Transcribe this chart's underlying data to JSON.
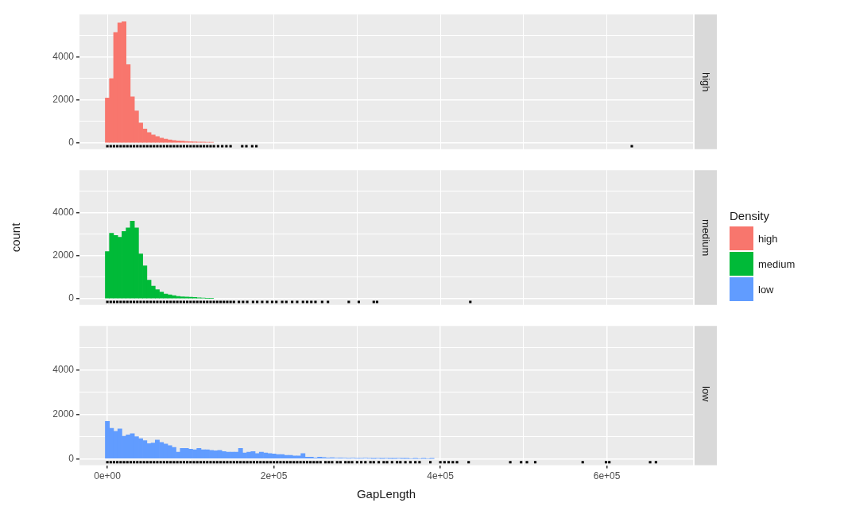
{
  "chart_data": [
    {
      "type": "histogram",
      "annotations": [
        "high"
      ],
      "bins": [
        -2500,
        2500,
        7500,
        12500,
        17500,
        22500,
        27500,
        32500,
        37500,
        42500,
        47500,
        52500,
        57500,
        62500,
        67500,
        72500,
        77500,
        82500,
        87500,
        92500,
        97500,
        102500,
        107500,
        112500,
        117500,
        122500,
        127500
      ],
      "series": [
        {
          "name": "high",
          "color": "#f8766d",
          "values": [
            2100,
            3000,
            5150,
            5600,
            5650,
            3650,
            2150,
            1500,
            930,
            650,
            490,
            380,
            300,
            230,
            180,
            140,
            120,
            100,
            90,
            70,
            60,
            50,
            40,
            40,
            30,
            30
          ]
        },
        {
          "type": "scatter",
          "color": "#000000",
          "x": [
            0,
            4000,
            8000,
            12000,
            16000,
            20000,
            24000,
            28000,
            32000,
            36000,
            40000,
            44000,
            48000,
            52000,
            56000,
            60000,
            64000,
            68000,
            72000,
            76000,
            80000,
            84000,
            88000,
            92000,
            96000,
            100000,
            104000,
            108000,
            112000,
            116000,
            120000,
            124000,
            128000,
            133000,
            138000,
            143000,
            148000,
            162000,
            167000,
            174000,
            179000,
            630000
          ],
          "values": [
            -150,
            -150,
            -150,
            -150,
            -150,
            -150,
            -150,
            -150,
            -150,
            -150,
            -150,
            -150,
            -150,
            -150,
            -150,
            -150,
            -150,
            -150,
            -150,
            -150,
            -150,
            -150,
            -150,
            -150,
            -150,
            -150,
            -150,
            -150,
            -150,
            -150,
            -150,
            -150,
            -150,
            -150,
            -150,
            -150,
            -150,
            -150,
            -150,
            -150,
            -150,
            -150
          ]
        }
      ],
      "xlim": [
        -33500,
        703500
      ],
      "ylim": [
        -290,
        5990
      ],
      "xticks": [
        {
          "value": 0,
          "label": null
        },
        {
          "value": 100000,
          "label": null
        },
        {
          "value": 200000,
          "label": null
        },
        {
          "value": 300000,
          "label": null
        },
        {
          "value": 400000,
          "label": null
        },
        {
          "value": 500000,
          "label": null
        },
        {
          "value": 600000,
          "label": null
        }
      ],
      "yticks": [
        0,
        {
          "value": 1000,
          "label": null
        },
        2000,
        {
          "value": 3000,
          "label": null
        },
        4000,
        {
          "value": 5000,
          "label": null
        }
      ],
      "grid": true,
      "tick_labels": "y",
      "marker": "square"
    },
    {
      "type": "histogram",
      "annotations": [
        "medium"
      ],
      "ylabel": "count",
      "legend": "right",
      "legend_title": "Density",
      "bins": [
        -2500,
        2500,
        7500,
        12500,
        17500,
        22500,
        27500,
        32500,
        37500,
        42500,
        47500,
        52500,
        57500,
        62500,
        67500,
        72500,
        77500,
        82500,
        87500,
        92500,
        97500,
        102500,
        107500,
        112500,
        117500,
        122500,
        127500
      ],
      "series": [
        {
          "name": "medium",
          "color": "#00ba38",
          "values": [
            2200,
            3050,
            2950,
            2870,
            3130,
            3300,
            3620,
            3300,
            2090,
            1530,
            870,
            590,
            420,
            310,
            220,
            180,
            140,
            110,
            90,
            80,
            70,
            60,
            40,
            30,
            20,
            20
          ]
        },
        {
          "type": "scatter",
          "color": "#000000",
          "x": [
            0,
            4000,
            8000,
            12000,
            16000,
            20000,
            24000,
            28000,
            32000,
            36000,
            40000,
            44000,
            48000,
            52000,
            56000,
            60000,
            64000,
            68000,
            72000,
            76000,
            80000,
            84000,
            88000,
            92000,
            96000,
            100000,
            104000,
            108000,
            112000,
            116000,
            120000,
            124000,
            128000,
            132000,
            136000,
            140000,
            144000,
            148000,
            152000,
            158000,
            163000,
            168000,
            175000,
            180000,
            186000,
            192000,
            198000,
            203000,
            210000,
            215000,
            222000,
            228000,
            235000,
            240000,
            245000,
            250000,
            258000,
            265000,
            290000,
            302000,
            320000,
            324000,
            436000
          ],
          "values": [
            -150,
            -150,
            -150,
            -150,
            -150,
            -150,
            -150,
            -150,
            -150,
            -150,
            -150,
            -150,
            -150,
            -150,
            -150,
            -150,
            -150,
            -150,
            -150,
            -150,
            -150,
            -150,
            -150,
            -150,
            -150,
            -150,
            -150,
            -150,
            -150,
            -150,
            -150,
            -150,
            -150,
            -150,
            -150,
            -150,
            -150,
            -150,
            -150,
            -150,
            -150,
            -150,
            -150,
            -150,
            -150,
            -150,
            -150,
            -150,
            -150,
            -150,
            -150,
            -150,
            -150,
            -150,
            -150,
            -150,
            -150,
            -150,
            -150,
            -150,
            -150,
            -150,
            -150
          ]
        }
      ],
      "xlim": [
        -33500,
        703500
      ],
      "ylim": [
        -290,
        5990
      ],
      "xticks": [
        {
          "value": 0,
          "label": null
        },
        {
          "value": 100000,
          "label": null
        },
        {
          "value": 200000,
          "label": null
        },
        {
          "value": 300000,
          "label": null
        },
        {
          "value": 400000,
          "label": null
        },
        {
          "value": 500000,
          "label": null
        },
        {
          "value": 600000,
          "label": null
        }
      ],
      "yticks": [
        0,
        {
          "value": 1000,
          "label": null
        },
        2000,
        {
          "value": 3000,
          "label": null
        },
        4000,
        {
          "value": 5000,
          "label": null
        }
      ],
      "grid": true,
      "tick_labels": "y",
      "marker": "square"
    },
    {
      "type": "histogram",
      "annotations": [
        "low"
      ],
      "xlabel": "GapLength",
      "bins": [
        -2500,
        2500,
        7500,
        12500,
        17500,
        22500,
        27500,
        32500,
        37500,
        42500,
        47500,
        52500,
        57500,
        62500,
        67500,
        72500,
        77500,
        82500,
        87500,
        92500,
        97500,
        102500,
        107500,
        112500,
        117500,
        122500,
        127500,
        132500,
        137500,
        142500,
        147500,
        152500,
        157500,
        162500,
        167500,
        172500,
        177500,
        182500,
        187500,
        192500,
        197500,
        202500,
        207500,
        212500,
        217500,
        222500,
        227500,
        232500,
        237500,
        242500,
        247500,
        252500,
        257500,
        262500,
        267500,
        272500,
        277500,
        282500,
        287500,
        292500,
        297500,
        302500,
        307500,
        312500,
        317500,
        322500,
        327500,
        332500,
        337500,
        342500,
        347500,
        352500,
        357500,
        362500,
        367500,
        372500,
        377500,
        382500,
        387500,
        392500
      ],
      "series": [
        {
          "name": "low",
          "color": "#619cff",
          "values": [
            1690,
            1380,
            1240,
            1350,
            1020,
            1080,
            1130,
            1000,
            910,
            820,
            690,
            710,
            850,
            740,
            670,
            600,
            520,
            300,
            470,
            470,
            440,
            410,
            470,
            410,
            410,
            380,
            360,
            380,
            330,
            300,
            300,
            300,
            470,
            270,
            300,
            330,
            240,
            300,
            270,
            240,
            220,
            190,
            190,
            160,
            160,
            130,
            130,
            240,
            80,
            80,
            40,
            80,
            60,
            40,
            50,
            30,
            40,
            30,
            20,
            30,
            20,
            20,
            30,
            20,
            10,
            20,
            10,
            20,
            10,
            10,
            20,
            10,
            10,
            0,
            10,
            0,
            10,
            0,
            10
          ]
        },
        {
          "type": "scatter",
          "color": "#000000",
          "x": [
            0,
            4000,
            8000,
            12000,
            16000,
            20000,
            24000,
            28000,
            32000,
            36000,
            40000,
            44000,
            48000,
            52000,
            56000,
            60000,
            64000,
            68000,
            72000,
            76000,
            80000,
            84000,
            88000,
            92000,
            96000,
            100000,
            104000,
            108000,
            112000,
            116000,
            120000,
            124000,
            128000,
            132000,
            136000,
            140000,
            144000,
            148000,
            152000,
            156000,
            160000,
            164000,
            168000,
            172000,
            176000,
            180000,
            184000,
            188000,
            192000,
            196000,
            200000,
            204000,
            208000,
            212000,
            216000,
            220000,
            224000,
            228000,
            232000,
            236000,
            240000,
            244000,
            248000,
            252000,
            256000,
            262000,
            266000,
            270000,
            276000,
            280000,
            286000,
            290000,
            294000,
            300000,
            305000,
            310000,
            316000,
            320000,
            326000,
            332000,
            336000,
            342000,
            348000,
            352000,
            358000,
            364000,
            370000,
            375000,
            388000,
            400000,
            405000,
            410000,
            415000,
            420000,
            434000,
            484000,
            497000,
            504000,
            514000,
            571000,
            599000,
            603000,
            652000,
            659000
          ],
          "values": [
            -150,
            -150,
            -150,
            -150,
            -150,
            -150,
            -150,
            -150,
            -150,
            -150,
            -150,
            -150,
            -150,
            -150,
            -150,
            -150,
            -150,
            -150,
            -150,
            -150,
            -150,
            -150,
            -150,
            -150,
            -150,
            -150,
            -150,
            -150,
            -150,
            -150,
            -150,
            -150,
            -150,
            -150,
            -150,
            -150,
            -150,
            -150,
            -150,
            -150,
            -150,
            -150,
            -150,
            -150,
            -150,
            -150,
            -150,
            -150,
            -150,
            -150,
            -150,
            -150,
            -150,
            -150,
            -150,
            -150,
            -150,
            -150,
            -150,
            -150,
            -150,
            -150,
            -150,
            -150,
            -150,
            -150,
            -150,
            -150,
            -150,
            -150,
            -150,
            -150,
            -150,
            -150,
            -150,
            -150,
            -150,
            -150,
            -150,
            -150,
            -150,
            -150,
            -150,
            -150,
            -150,
            -150,
            -150,
            -150,
            -150,
            -150,
            -150,
            -150,
            -150,
            -150,
            -150,
            -150,
            -150,
            -150,
            -150,
            -150,
            -150,
            -150,
            -150,
            -150
          ]
        }
      ],
      "xlim": [
        -33500,
        703500
      ],
      "ylim": [
        -290,
        5990
      ],
      "xticks": [
        {
          "value": 0,
          "label": "0e+00"
        },
        {
          "value": 100000,
          "label": null
        },
        {
          "value": 200000,
          "label": "2e+05"
        },
        {
          "value": 300000,
          "label": null
        },
        {
          "value": 400000,
          "label": "4e+05"
        },
        {
          "value": 500000,
          "label": null
        },
        {
          "value": 600000,
          "label": "6e+05"
        }
      ],
      "yticks": [
        0,
        {
          "value": 1000,
          "label": null
        },
        2000,
        {
          "value": 3000,
          "label": null
        },
        4000,
        {
          "value": 5000,
          "label": null
        }
      ],
      "grid": true,
      "marker": "square"
    }
  ]
}
